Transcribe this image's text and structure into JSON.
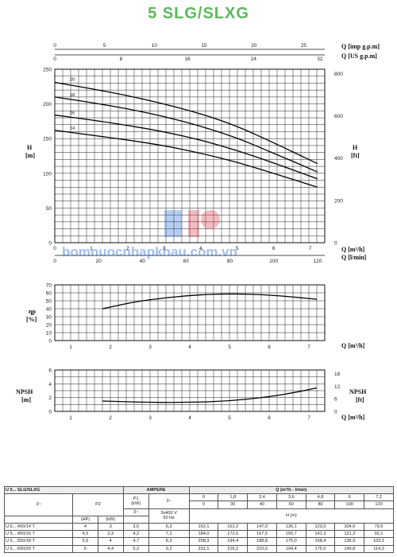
{
  "page_title": "5 SLG/SLXG",
  "chart_data": [
    {
      "type": "line",
      "name": "head_curves",
      "top_axes": {
        "label_imp": "Q [imp g.p.m]",
        "label_us": "Q [US g.p.m]",
        "ticks_imp": [
          "0",
          "5",
          "10",
          "15",
          "20",
          "25"
        ],
        "ticks_us": [
          "0",
          "8",
          "16",
          "24",
          "32"
        ]
      },
      "xlabel": "Q [m³/h]",
      "xlabel2": "Q [l/min]",
      "x_ticks": [
        "0",
        "1",
        "2",
        "3",
        "4",
        "5",
        "6",
        "7"
      ],
      "x2_ticks": [
        "0",
        "20",
        "40",
        "60",
        "80",
        "100",
        "120"
      ],
      "xlim": [
        0,
        7.4
      ],
      "ylabel": "H",
      "ylabel_unit": "[m]",
      "ylim": [
        0,
        250
      ],
      "y_ticks": [
        "0",
        "50",
        "100",
        "150",
        "200",
        "250"
      ],
      "ylabel_right": "H",
      "ylabel_right_unit": "[ft]",
      "yr_ticks": [
        "0",
        "200",
        "400",
        "600",
        "800"
      ],
      "series": [
        {
          "name": "20",
          "x": [
            0,
            1,
            2,
            3,
            4,
            5,
            6,
            7.2
          ],
          "y": [
            231,
            222,
            212,
            200,
            186,
            168,
            144,
            114
          ]
        },
        {
          "name": "18",
          "x": [
            0,
            1,
            2,
            3,
            4,
            5,
            6,
            7.2
          ],
          "y": [
            210,
            202,
            193,
            182,
            168,
            151,
            129,
            102
          ]
        },
        {
          "name": "16",
          "x": [
            0,
            1,
            2,
            3,
            4,
            5,
            6,
            7.2
          ],
          "y": [
            184,
            177,
            169,
            160,
            148,
            133,
            115,
            92
          ]
        },
        {
          "name": "14",
          "x": [
            0,
            1,
            2,
            3,
            4,
            5,
            6,
            7.2
          ],
          "y": [
            162,
            155,
            148,
            140,
            129,
            116,
            100,
            80
          ]
        }
      ]
    },
    {
      "type": "line",
      "name": "efficiency_curve",
      "ylabel": "ηp",
      "ylabel_unit": "[%]",
      "xlabel": "Q [m³/h]",
      "x_ticks": [
        "1",
        "2",
        "3",
        "4",
        "5",
        "6",
        "7"
      ],
      "xlim": [
        0.6,
        7.4
      ],
      "ylim": [
        0,
        70
      ],
      "y_ticks": [
        "0",
        "10",
        "20",
        "30",
        "40",
        "50",
        "60",
        "70"
      ],
      "series": [
        {
          "x": [
            1.8,
            2.5,
            3,
            4,
            5,
            6,
            7.2
          ],
          "y": [
            40,
            47.5,
            51.5,
            57,
            59,
            57.5,
            52
          ]
        }
      ]
    },
    {
      "type": "line",
      "name": "npsh_curve",
      "ylabel": "NPSH",
      "ylabel_unit": "[m]",
      "ylabel_right": "NPSH",
      "ylabel_right_unit": "[ft]",
      "xlabel": "Q [m³/h]",
      "x_ticks": [
        "1",
        "2",
        "3",
        "4",
        "5",
        "6",
        "7"
      ],
      "xlim": [
        0.6,
        7.4
      ],
      "ylim": [
        0,
        6
      ],
      "y_ticks": [
        "0",
        "2",
        "4",
        "6"
      ],
      "yr_ticks": [
        "0",
        "6",
        "12",
        "18"
      ],
      "series": [
        {
          "x": [
            1.8,
            3,
            4,
            5,
            6,
            6.7,
            7.2
          ],
          "y": [
            1.5,
            1.3,
            1.3,
            1.5,
            2.1,
            2.8,
            3.4
          ]
        }
      ]
    }
  ],
  "table": {
    "title": "U 5... SLG/SLXG",
    "phase_left": "3~",
    "p2_label": "P2",
    "p1_label": "P1",
    "p1_unit": "(kW)",
    "p1_phase": "3~",
    "ampere_label": "AMPERE",
    "ampere_phase": "3~",
    "ampere_supply": "3x400 V",
    "ampere_freq": "50 Hz",
    "q_header": "Q (m³/h - l/min)",
    "h_header": "H (m)",
    "hp_unit": "(HP)",
    "kw_unit": "(kW)",
    "q_m3h": [
      "0",
      "1,8",
      "2,4",
      "3,6",
      "4,8",
      "6",
      "7,2"
    ],
    "q_lmin": [
      "0",
      "30",
      "40",
      "60",
      "80",
      "100",
      "120"
    ],
    "rows": [
      {
        "model": "U 5....400/14 T",
        "hp": "4",
        "kw": "3",
        "p1": "3,5",
        "amp": "6,3",
        "h": [
          "162,1",
          "151,2",
          "147,0",
          "136,1",
          "123,0",
          "104,6",
          "79,6"
        ]
      },
      {
        "model": "U 5....450/16 T",
        "hp": "4,5",
        "kw": "3,3",
        "p1": "4,2",
        "amp": "7,2",
        "h": [
          "184,0",
          "172,5",
          "167,5",
          "155,7",
          "141,3",
          "121,3",
          "92,1"
        ]
      },
      {
        "model": "U 5....550/18 T",
        "hp": "5,5",
        "kw": "4",
        "p1": "4,7",
        "amp": "8,3",
        "h": "208,3|194,4|188,8|175,0|158,4|136,9|102,1"
      },
      {
        "model": "U 5....600/20 T",
        "hp": "6",
        "kw": "4,4",
        "p1": "5,2",
        "amp": "9,2",
        "h": [
          "231,1",
          "216,2",
          "210,0",
          "194,4",
          "175,0",
          "149,8",
          "114,3"
        ]
      }
    ]
  },
  "watermark": {
    "text": "bomnuocnhapkhau.com.vn",
    "colors": {
      "blue": "#2f6fd6",
      "red": "#e0404a"
    }
  }
}
